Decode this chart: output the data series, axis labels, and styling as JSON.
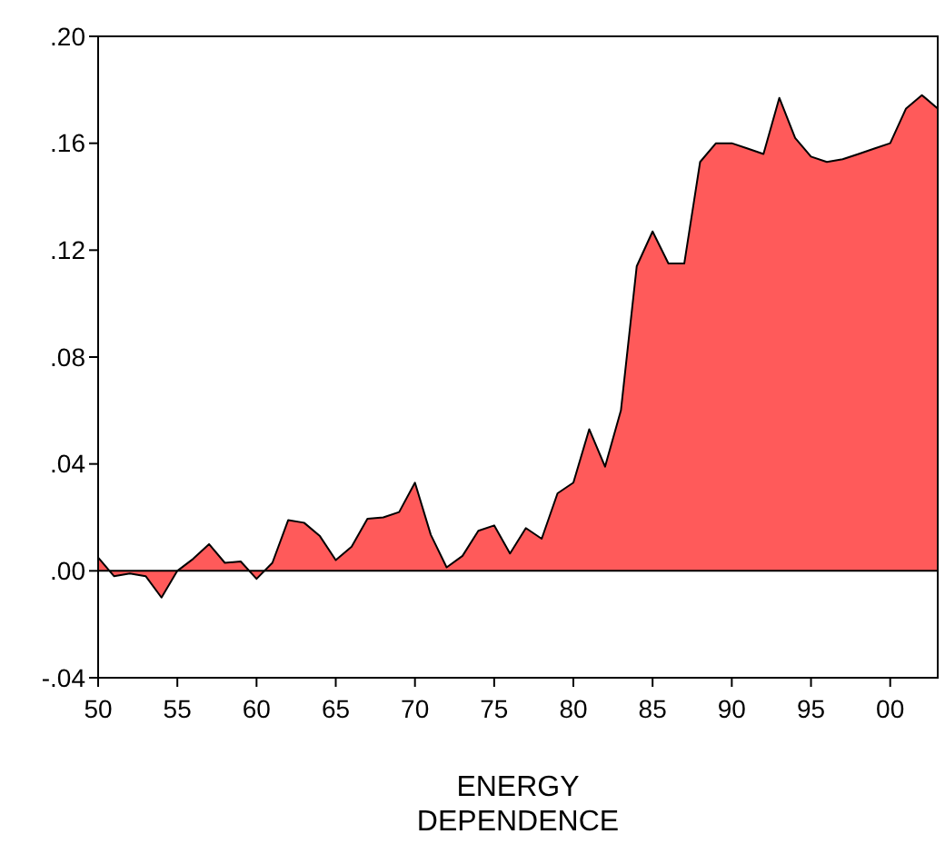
{
  "chart_data": {
    "type": "area",
    "xlabel": "ENERGY DEPENDENCE",
    "x": [
      1950,
      1951,
      1952,
      1953,
      1954,
      1955,
      1956,
      1957,
      1958,
      1959,
      1960,
      1961,
      1962,
      1963,
      1964,
      1965,
      1966,
      1967,
      1968,
      1969,
      1970,
      1971,
      1972,
      1973,
      1974,
      1975,
      1976,
      1977,
      1978,
      1979,
      1980,
      1981,
      1982,
      1983,
      1984,
      1985,
      1986,
      1987,
      1988,
      1989,
      1990,
      1991,
      1992,
      1993,
      1994,
      1995,
      1996,
      1997,
      1998,
      1999,
      2000,
      2001,
      2002,
      2003
    ],
    "series": [
      {
        "color": "#ff5a5a",
        "values": [
          0.005,
          -0.002,
          -0.001,
          -0.002,
          -0.01,
          0.0,
          0.0045,
          0.01,
          0.003,
          0.0035,
          -0.003,
          0.003,
          0.019,
          0.018,
          0.013,
          0.004,
          0.009,
          0.0195,
          0.02,
          0.022,
          0.033,
          0.0135,
          0.0013,
          0.0056,
          0.015,
          0.017,
          0.0065,
          0.016,
          0.012,
          0.029,
          0.033,
          0.053,
          0.039,
          0.06,
          0.114,
          0.127,
          0.115,
          0.115,
          0.153,
          0.16,
          0.16,
          0.158,
          0.156,
          0.177,
          0.162,
          0.155,
          0.153,
          0.154,
          0.156,
          0.158,
          0.16,
          0.173,
          0.178,
          0.173
        ]
      }
    ],
    "xlim": [
      1950,
      2003
    ],
    "xticks": [
      {
        "value": 1950,
        "label": "50"
      },
      {
        "value": 1955,
        "label": "55"
      },
      {
        "value": 1960,
        "label": "60"
      },
      {
        "value": 1965,
        "label": "65"
      },
      {
        "value": 1970,
        "label": "70"
      },
      {
        "value": 1975,
        "label": "75"
      },
      {
        "value": 1980,
        "label": "80"
      },
      {
        "value": 1985,
        "label": "85"
      },
      {
        "value": 1990,
        "label": "90"
      },
      {
        "value": 1995,
        "label": "95"
      },
      {
        "value": 2000,
        "label": "00"
      }
    ],
    "ylim": [
      -0.04,
      0.2
    ],
    "yticks": [
      {
        "value": -0.04,
        "label": "-.04"
      },
      {
        "value": 0,
        "label": ".00"
      },
      {
        "value": 0.04,
        "label": ".04"
      },
      {
        "value": 0.08,
        "label": ".08"
      },
      {
        "value": 0.12,
        "label": ".12"
      },
      {
        "value": 0.16,
        "label": ".16"
      },
      {
        "value": 0.2,
        "label": ".20"
      }
    ],
    "ref_lines": [
      {
        "axis": "y",
        "value": 0,
        "color": "#000000"
      }
    ],
    "grid": false
  }
}
